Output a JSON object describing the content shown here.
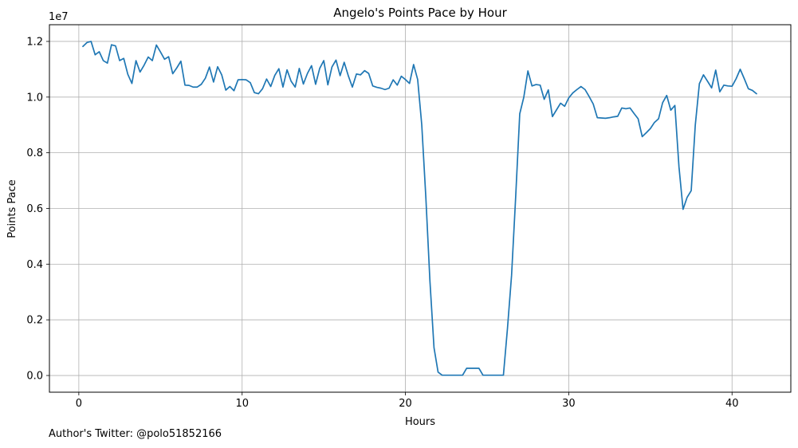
{
  "footer": {
    "author": "Author's Twitter: @polo51852166"
  },
  "chart_data": {
    "type": "line",
    "title": "Angelo's Points Pace by Hour",
    "xlabel": "Hours",
    "ylabel": "Points Pace",
    "y_offset_label": "1e7",
    "xlim": [
      -1.8,
      43.6
    ],
    "ylim": [
      -0.06,
      1.26
    ],
    "y_units_multiplier": 10000000,
    "x_ticks": [
      0,
      10,
      20,
      30,
      40
    ],
    "x_tick_labels": [
      "0",
      "10",
      "20",
      "30",
      "40"
    ],
    "y_ticks": [
      0,
      0.2,
      0.4,
      0.6,
      0.8,
      1.0,
      1.2
    ],
    "y_tick_labels": [
      "0.0",
      "0.2",
      "0.4",
      "0.6",
      "0.8",
      "1.0",
      "1.2"
    ],
    "grid": true,
    "line_color": "#1f77b4",
    "series": [
      {
        "x": [
          0.25,
          0.5,
          0.75,
          1.0,
          1.25,
          1.5,
          1.75,
          2.0,
          2.25,
          2.5,
          2.75,
          3.0,
          3.25,
          3.5,
          3.75,
          4.0,
          4.25,
          4.5,
          4.75,
          5.0,
          5.25,
          5.5,
          5.75,
          6.0,
          6.25,
          6.5,
          6.75,
          7.0,
          7.25,
          7.5,
          7.75,
          8.0,
          8.25,
          8.5,
          8.75,
          9.0,
          9.25,
          9.5,
          9.75,
          10.0,
          10.25,
          10.5,
          10.75,
          11.0,
          11.25,
          11.5,
          11.75,
          12.0,
          12.25,
          12.5,
          12.75,
          13.0,
          13.25,
          13.5,
          13.75,
          14.0,
          14.25,
          14.5,
          14.75,
          15.0,
          15.25,
          15.5,
          15.75,
          16.0,
          16.25,
          16.5,
          16.75,
          17.0,
          17.25,
          17.5,
          17.75,
          18.0,
          18.25,
          18.5,
          18.75,
          19.0,
          19.25,
          19.5,
          19.75,
          20.0,
          20.25,
          20.5,
          20.75,
          21.0,
          21.25,
          21.5,
          21.75,
          22.0,
          22.25,
          22.5,
          22.75,
          23.0,
          23.25,
          23.5,
          23.75,
          24.0,
          24.25,
          24.5,
          24.75,
          25.0,
          25.25,
          25.5,
          25.75,
          26.0,
          26.25,
          26.5,
          26.75,
          27.0,
          27.25,
          27.5,
          27.75,
          28.0,
          28.25,
          28.5,
          28.75,
          29.0,
          29.25,
          29.5,
          29.75,
          30.0,
          30.25,
          30.5,
          30.75,
          31.0,
          31.25,
          31.5,
          31.75,
          32.0,
          32.25,
          32.5,
          32.75,
          33.0,
          33.25,
          33.5,
          33.75,
          34.0,
          34.25,
          34.5,
          34.75,
          35.0,
          35.25,
          35.5,
          35.75,
          36.0,
          36.25,
          36.5,
          36.75,
          37.0,
          37.25,
          37.5,
          37.75,
          38.0,
          38.25,
          38.5,
          38.75,
          39.0,
          39.25,
          39.5,
          39.75,
          40.0,
          40.25,
          40.5,
          40.75,
          41.0,
          41.25,
          41.5
        ],
        "values": [
          1.182,
          1.196,
          1.2,
          1.152,
          1.163,
          1.131,
          1.122,
          1.188,
          1.184,
          1.131,
          1.139,
          1.082,
          1.049,
          1.131,
          1.09,
          1.115,
          1.144,
          1.131,
          1.187,
          1.162,
          1.136,
          1.145,
          1.084,
          1.105,
          1.129,
          1.043,
          1.042,
          1.036,
          1.036,
          1.046,
          1.068,
          1.108,
          1.054,
          1.109,
          1.08,
          1.025,
          1.038,
          1.023,
          1.062,
          1.063,
          1.062,
          1.052,
          1.016,
          1.012,
          1.03,
          1.065,
          1.038,
          1.078,
          1.102,
          1.036,
          1.098,
          1.057,
          1.036,
          1.103,
          1.047,
          1.085,
          1.113,
          1.046,
          1.103,
          1.131,
          1.044,
          1.108,
          1.133,
          1.077,
          1.125,
          1.077,
          1.036,
          1.083,
          1.08,
          1.095,
          1.085,
          1.04,
          1.035,
          1.032,
          1.027,
          1.032,
          1.062,
          1.043,
          1.075,
          1.063,
          1.049,
          1.117,
          1.063,
          0.9,
          0.64,
          0.34,
          0.1,
          0.012,
          0.001,
          0.001,
          0.001,
          0.001,
          0.001,
          0.001,
          0.026,
          0.026,
          0.026,
          0.026,
          0.001,
          0.001,
          0.001,
          0.001,
          0.001,
          0.001,
          0.17,
          0.36,
          0.64,
          0.94,
          1.0,
          1.094,
          1.04,
          1.045,
          1.043,
          0.992,
          1.026,
          0.93,
          0.954,
          0.978,
          0.967,
          0.997,
          1.015,
          1.027,
          1.038,
          1.027,
          1.002,
          0.975,
          0.926,
          0.925,
          0.924,
          0.926,
          0.929,
          0.931,
          0.961,
          0.958,
          0.961,
          0.941,
          0.922,
          0.858,
          0.872,
          0.887,
          0.909,
          0.922,
          0.98,
          1.006,
          0.953,
          0.97,
          0.75,
          0.597,
          0.64,
          0.664,
          0.9,
          1.048,
          1.08,
          1.057,
          1.033,
          1.097,
          1.019,
          1.043,
          1.04,
          1.039,
          1.066,
          1.1,
          1.066,
          1.03,
          1.024,
          1.012
        ]
      }
    ]
  }
}
